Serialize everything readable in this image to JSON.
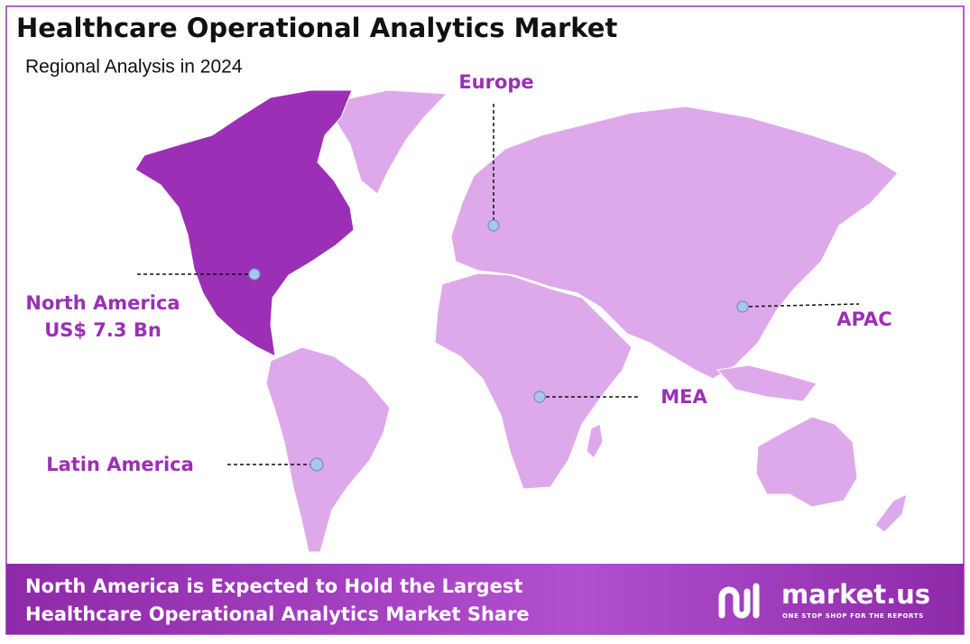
{
  "header": {
    "title": "Healthcare Operational Analytics Market",
    "subtitle": "Regional Analysis in 2024"
  },
  "regions": [
    {
      "label": "North America",
      "value_label": "US$ 7.3 Bn"
    },
    {
      "label": "Europe"
    },
    {
      "label": "APAC"
    },
    {
      "label": "MEA"
    },
    {
      "label": "Latin America"
    }
  ],
  "footer": {
    "lines": [
      "North America is Expected to Hold the Largest",
      "Healthcare Operational Analytics Market Share"
    ],
    "brand": "market.us",
    "tagline": "ONE STOP SHOP FOR THE REPORTS"
  }
}
